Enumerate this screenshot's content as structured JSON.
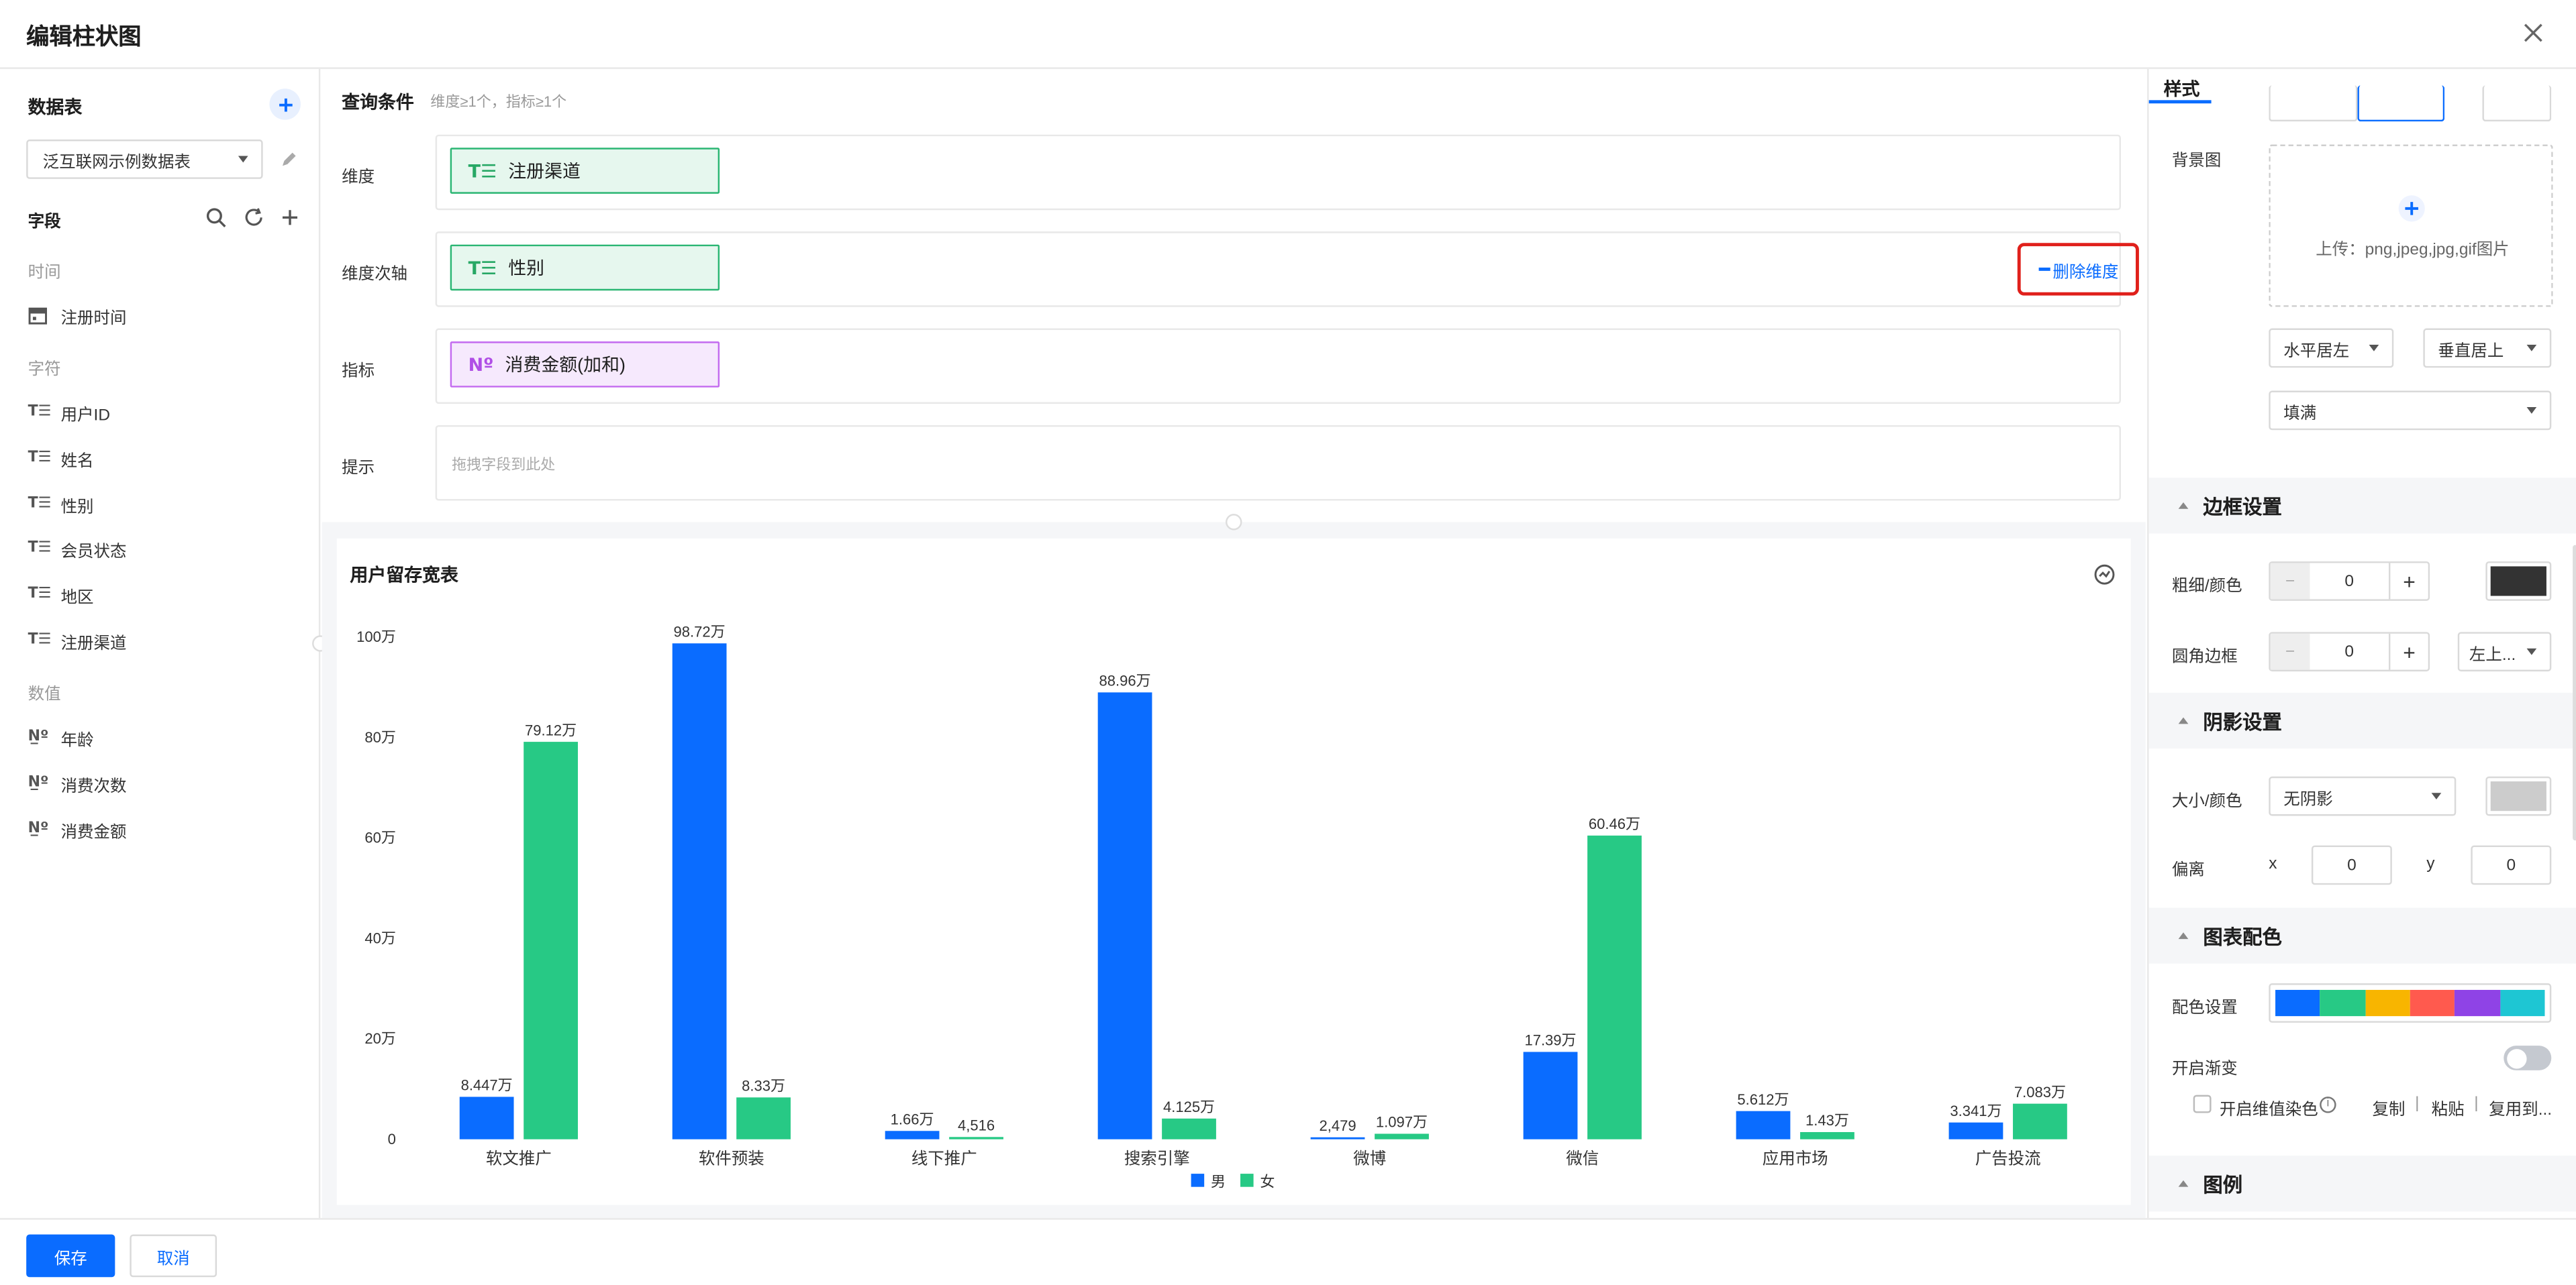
{
  "dialog": {
    "title": "编辑柱状图",
    "close_icon": "close-icon"
  },
  "left": {
    "datatable_title": "数据表",
    "datatable_select": "泛互联网示例数据表",
    "fields_title": "字段",
    "groups": [
      {
        "label": "时间",
        "items": [
          {
            "name": "注册时间",
            "type": "date"
          }
        ]
      },
      {
        "label": "字符",
        "items": [
          {
            "name": "用户ID",
            "type": "text"
          },
          {
            "name": "姓名",
            "type": "text"
          },
          {
            "name": "性别",
            "type": "text"
          },
          {
            "name": "会员状态",
            "type": "text"
          },
          {
            "name": "地区",
            "type": "text"
          },
          {
            "name": "注册渠道",
            "type": "text"
          }
        ]
      },
      {
        "label": "数值",
        "items": [
          {
            "name": "年龄",
            "type": "number"
          },
          {
            "name": "消费次数",
            "type": "number"
          },
          {
            "name": "消费金额",
            "type": "number"
          }
        ]
      }
    ],
    "type_glyphs": {
      "text": "T☰",
      "number": "N̲º"
    }
  },
  "query": {
    "title": "查询条件",
    "hint": "维度≥1个，指标≥1个",
    "dimension_label": "维度",
    "dimension_value": "注册渠道",
    "secondary_label": "维度次轴",
    "secondary_value": "性别",
    "delete_dimension": "删除维度",
    "metric_label": "指标",
    "metric_value": "消费金额(加和)",
    "tip_label": "提示",
    "tip_placeholder": "拖拽字段到此处",
    "chip_text_glyph": "T☰",
    "chip_num_glyph": "Nº"
  },
  "chart_card": {
    "title": "用户留存宽表"
  },
  "chart_data": {
    "type": "bar",
    "title": "用户留存宽表",
    "categories": [
      "软文推广",
      "软件预装",
      "线下推广",
      "搜索引擎",
      "微博",
      "微信",
      "应用市场",
      "广告投流"
    ],
    "series": [
      {
        "name": "男",
        "color": "#0a6cff",
        "values": [
          84470,
          987200,
          16600,
          889600,
          2479,
          173900,
          56120,
          33410
        ],
        "labels": [
          "8.447万",
          "98.72万",
          "1.66万",
          "88.96万",
          "2,479",
          "17.39万",
          "5.612万",
          "3.341万"
        ]
      },
      {
        "name": "女",
        "color": "#27c985",
        "values": [
          791200,
          83300,
          4516,
          41250,
          10970,
          604600,
          14300,
          70830
        ],
        "labels": [
          "79.12万",
          "8.33万",
          "4,516",
          "4.125万",
          "1.097万",
          "60.46万",
          "1.43万",
          "7.083万"
        ]
      }
    ],
    "ylim": [
      0,
      1000000
    ],
    "yticks": [
      0,
      200000,
      400000,
      600000,
      800000,
      1000000
    ],
    "ytick_labels": [
      "0",
      "20万",
      "40万",
      "60万",
      "80万",
      "100万"
    ],
    "grid": false,
    "legend": "bottom-center"
  },
  "style": {
    "tab": "样式",
    "bg_image_label": "背景图",
    "upload_text": "上传：png,jpeg,jpg,gif图片",
    "h_align": "水平居左",
    "v_align": "垂直居上",
    "fill": "填满",
    "border_section": "边框设置",
    "border_width_label": "粗细/颜色",
    "border_width": "0",
    "border_color": "#333333",
    "radius_label": "圆角边框",
    "radius_value": "0",
    "radius_corner": "左上...",
    "shadow_section": "阴影设置",
    "shadow_size_label": "大小/颜色",
    "shadow_value": "无阴影",
    "shadow_color": "#cccccc",
    "offset_label": "偏离",
    "offset_x_label": "x",
    "offset_x": "0",
    "offset_y_label": "y",
    "offset_y": "0",
    "palette_section": "图表配色",
    "palette_label": "配色设置",
    "palette": [
      "#0a6cff",
      "#27c985",
      "#f8b500",
      "#ff5a4e",
      "#8f43e6",
      "#1ec6d3"
    ],
    "gradient_label": "开启渐变",
    "dim_color_label": "开启维值染色",
    "copy": "复制",
    "paste": "粘贴",
    "reuse": "复用到...",
    "legend_section": "图例"
  },
  "footer": {
    "save": "保存",
    "cancel": "取消"
  }
}
